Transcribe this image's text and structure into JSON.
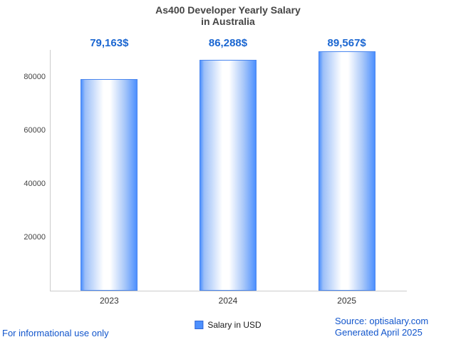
{
  "title": {
    "line1": "As400 Developer Yearly Salary",
    "line2": "in Australia"
  },
  "chart_data": {
    "type": "bar",
    "title": "As400 Developer Yearly Salary in Australia",
    "categories": [
      "2023",
      "2024",
      "2025"
    ],
    "values": [
      79163,
      86288,
      89567
    ],
    "value_labels": [
      "79,163$",
      "86,288$",
      "89,567$"
    ],
    "series_name": "Salary in USD",
    "xlabel": "",
    "ylabel": "",
    "ylim": [
      0,
      90000
    ],
    "yticks": [
      20000,
      40000,
      60000,
      80000
    ],
    "ytick_labels": [
      "20000",
      "40000",
      "60000",
      "80000"
    ],
    "grid": false,
    "legend_position": "bottom",
    "bar_color": "#4d90fe",
    "value_label_color": "#1a66d1"
  },
  "legend": {
    "label": "Salary in USD",
    "swatch_color": "#4d90fe"
  },
  "footer": {
    "left": "For informational use only",
    "source": "Source: optisalary.com",
    "generated": "Generated April 2025"
  },
  "colors": {
    "accent_blue": "#1a66d1",
    "footer_blue": "#1155cc",
    "axis_gray": "#cccccc",
    "title_gray": "#454545"
  }
}
